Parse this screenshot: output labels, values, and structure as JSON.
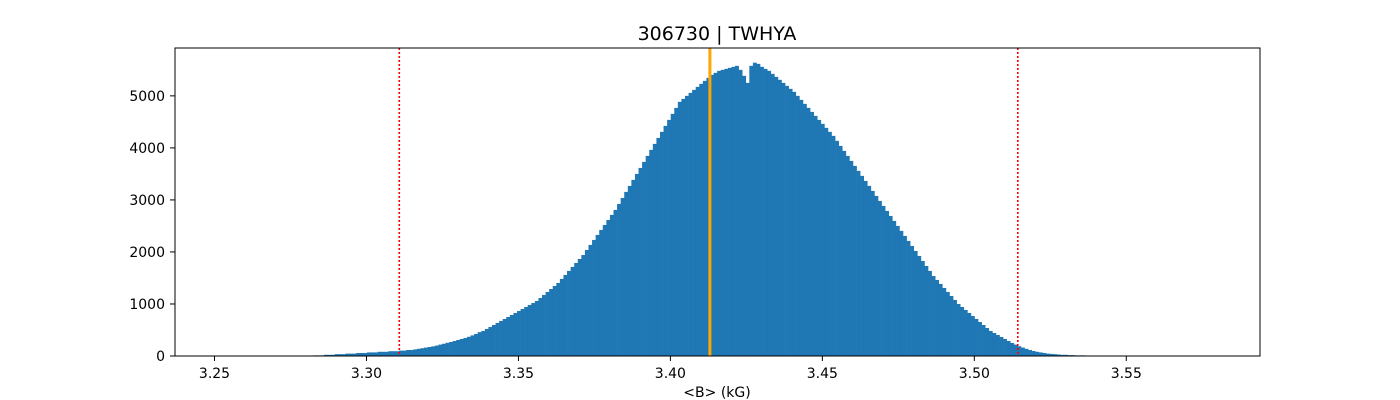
{
  "chart_data": {
    "type": "bar",
    "title": "306730 | TWHYA",
    "xlabel": "<B> (kG)",
    "ylabel": "",
    "xlim": [
      3.237,
      3.594
    ],
    "ylim": [
      0,
      5920
    ],
    "xticks": [
      3.25,
      3.3,
      3.35,
      3.4,
      3.45,
      3.5,
      3.55
    ],
    "xtick_labels": [
      "3.25",
      "3.30",
      "3.35",
      "3.40",
      "3.45",
      "3.50",
      "3.55"
    ],
    "yticks": [
      0,
      1000,
      2000,
      3000,
      4000,
      5000
    ],
    "ytick_labels": [
      "0",
      "1000",
      "2000",
      "3000",
      "4000",
      "5000"
    ],
    "bin_width": 0.001176,
    "bin_start": 3.2825,
    "bin_values": [
      12,
      12,
      12,
      23,
      23,
      23,
      35,
      35,
      35,
      46,
      46,
      46,
      58,
      58,
      58,
      69,
      69,
      69,
      81,
      81,
      81,
      92,
      92,
      92,
      104,
      104,
      115,
      115,
      127,
      138,
      150,
      162,
      173,
      185,
      200,
      219,
      235,
      254,
      269,
      288,
      308,
      327,
      346,
      369,
      396,
      423,
      458,
      481,
      519,
      558,
      596,
      635,
      673,
      712,
      750,
      788,
      827,
      865,
      904,
      942,
      981,
      1019,
      1058,
      1115,
      1173,
      1231,
      1288,
      1346,
      1404,
      1481,
      1558,
      1635,
      1712,
      1788,
      1865,
      1942,
      2038,
      2135,
      2231,
      2327,
      2423,
      2519,
      2615,
      2712,
      2808,
      2923,
      3038,
      3154,
      3269,
      3385,
      3500,
      3615,
      3731,
      3846,
      3962,
      4077,
      4192,
      4308,
      4423,
      4538,
      4654,
      4769,
      4885,
      4942,
      5000,
      5058,
      5115,
      5173,
      5231,
      5288,
      5346,
      5404,
      5442,
      5481,
      5500,
      5519,
      5538,
      5558,
      5577,
      5500,
      5385,
      5250,
      5577,
      5638,
      5615,
      5558,
      5519,
      5481,
      5423,
      5365,
      5308,
      5250,
      5192,
      5135,
      5077,
      5000,
      4923,
      4846,
      4769,
      4692,
      4615,
      4538,
      4462,
      4385,
      4308,
      4231,
      4135,
      4038,
      3942,
      3846,
      3750,
      3654,
      3558,
      3462,
      3365,
      3269,
      3173,
      3077,
      2981,
      2885,
      2788,
      2692,
      2596,
      2500,
      2404,
      2308,
      2212,
      2115,
      2019,
      1923,
      1827,
      1731,
      1635,
      1538,
      1462,
      1385,
      1308,
      1231,
      1154,
      1077,
      1000,
      942,
      885,
      827,
      769,
      712,
      654,
      596,
      538,
      481,
      442,
      404,
      365,
      327,
      288,
      250,
      219,
      188,
      162,
      138,
      115,
      96,
      81,
      69,
      58,
      46,
      40,
      35,
      29,
      23,
      23,
      17,
      17,
      12,
      12,
      12,
      8,
      8,
      8,
      6,
      6,
      4,
      4,
      4,
      2,
      2,
      2
    ],
    "bar_color": "#1f77b4",
    "vlines": [
      {
        "x": 3.3108,
        "color": "#ff0000",
        "style": "dotted"
      },
      {
        "x": 3.413,
        "color": "#ffa500",
        "style": "solid"
      },
      {
        "x": 3.5143,
        "color": "#ff0000",
        "style": "dotted"
      }
    ],
    "grid": false
  }
}
